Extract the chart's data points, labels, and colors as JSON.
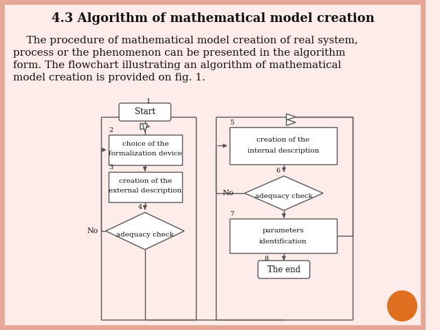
{
  "title": "4.3 Algorithm of mathematical model creation",
  "bg_color": "#fdecea",
  "border_color": "#e8a898",
  "fc": "#555555",
  "box_fill": "#ffffff",
  "orange_dot_color": "#e07020",
  "title_fontsize": 13,
  "text_fontsize": 11,
  "para_lines": [
    "    The procedure of mathematical model creation of real system,",
    "process or the phenomenon can be presented in the algorithm",
    "form. The flowchart illustrating an algorithm of mathematical",
    "model creation is provided on fig. 1."
  ]
}
